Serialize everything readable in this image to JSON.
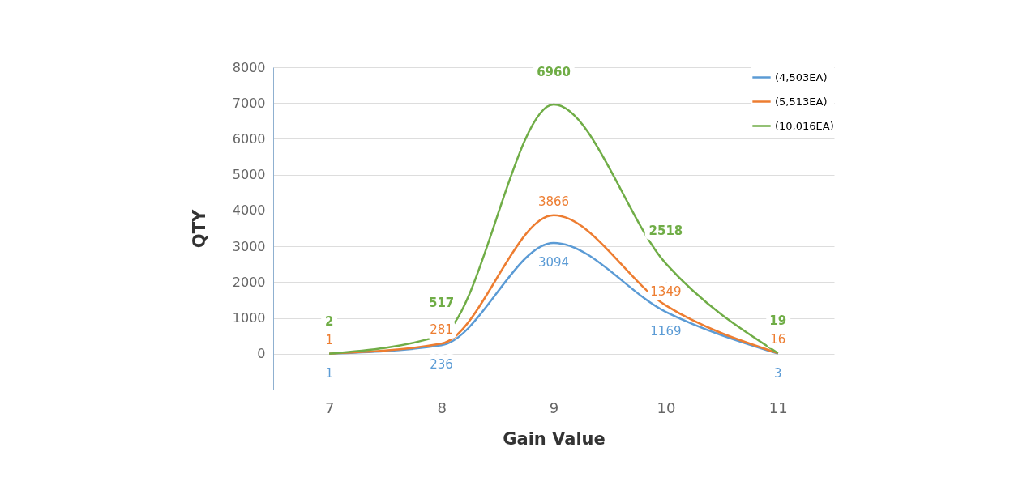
{
  "chart_data": {
    "type": "line",
    "xlabel": "Gain Value",
    "ylabel": "QTY",
    "categories": [
      "7",
      "8",
      "9",
      "10",
      "11"
    ],
    "series": [
      {
        "name": "(4,503EA)",
        "color": "#5b9bd5",
        "values": [
          1,
          236,
          3094,
          1169,
          3
        ]
      },
      {
        "name": "(5,513EA)",
        "color": "#ed7d31",
        "values": [
          1,
          281,
          3866,
          1349,
          16
        ]
      },
      {
        "name": "(10,016EA)",
        "color": "#70ad47",
        "values": [
          2,
          517,
          6960,
          2518,
          19
        ]
      }
    ],
    "ylim": [
      -1000,
      8000
    ],
    "yticks": [
      0,
      1000,
      2000,
      3000,
      4000,
      5000,
      6000,
      7000,
      8000
    ],
    "grid": "y",
    "legend": "top right",
    "data_labels": true,
    "marker": "none",
    "line_style": "solid"
  }
}
